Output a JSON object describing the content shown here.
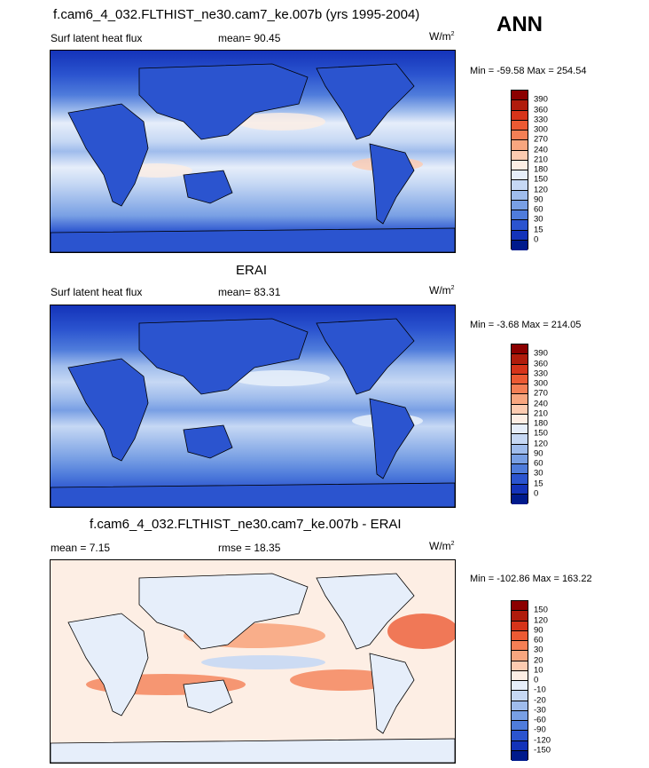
{
  "season": "ANN",
  "panels": [
    {
      "title": "f.cam6_4_032.FLTHIST_ne30.cam7_ke.007b (yrs 1995-2004)",
      "field": "Surf latent heat flux",
      "stat_label": "mean=",
      "stat_value": "90.45",
      "units_base": "W/m",
      "units_sup": "2",
      "minmax": "Min = -59.58 Max = 254.54",
      "colorbar": {
        "labels": [
          "390",
          "360",
          "330",
          "300",
          "270",
          "240",
          "210",
          "180",
          "150",
          "120",
          "90",
          "60",
          "30",
          "15",
          "0"
        ],
        "colors": [
          "#8b0000",
          "#b01c0c",
          "#d6341a",
          "#ec5a33",
          "#f47f55",
          "#f8a67f",
          "#fccbb0",
          "#fdeee4",
          "#e6eefa",
          "#c6d8f4",
          "#9fbcec",
          "#789fe4",
          "#4f7cdb",
          "#2b54cf",
          "#1433b9",
          "#001a8c"
        ]
      }
    },
    {
      "title": "ERAI",
      "field": "Surf latent heat flux",
      "stat_label": "mean=",
      "stat_value": "83.31",
      "units_base": "W/m",
      "units_sup": "2",
      "minmax": "Min =  -3.68 Max = 214.05",
      "colorbar": {
        "labels": [
          "390",
          "360",
          "330",
          "300",
          "270",
          "240",
          "210",
          "180",
          "150",
          "120",
          "90",
          "60",
          "30",
          "15",
          "0"
        ],
        "colors": [
          "#8b0000",
          "#b01c0c",
          "#d6341a",
          "#ec5a33",
          "#f47f55",
          "#f8a67f",
          "#fccbb0",
          "#fdeee4",
          "#e6eefa",
          "#c6d8f4",
          "#9fbcec",
          "#789fe4",
          "#4f7cdb",
          "#2b54cf",
          "#1433b9",
          "#001a8c"
        ]
      }
    },
    {
      "title": "f.cam6_4_032.FLTHIST_ne30.cam7_ke.007b - ERAI",
      "field": "mean =",
      "stat_value_left": "7.15",
      "stat_label": "rmse =",
      "stat_value": "18.35",
      "units_base": "W/m",
      "units_sup": "2",
      "minmax": "Min = -102.86 Max = 163.22",
      "colorbar": {
        "labels": [
          "150",
          "120",
          "90",
          "60",
          "30",
          "20",
          "10",
          "0",
          "-10",
          "-20",
          "-30",
          "-60",
          "-90",
          "-120",
          "-150"
        ],
        "colors": [
          "#8b0000",
          "#b01c0c",
          "#d6341a",
          "#ec5a33",
          "#f47f55",
          "#f8a67f",
          "#fccbb0",
          "#fdeee4",
          "#e6eefa",
          "#c6d8f4",
          "#9fbcec",
          "#789fe4",
          "#4f7cdb",
          "#2b54cf",
          "#1433b9",
          "#001a8c"
        ]
      }
    }
  ]
}
